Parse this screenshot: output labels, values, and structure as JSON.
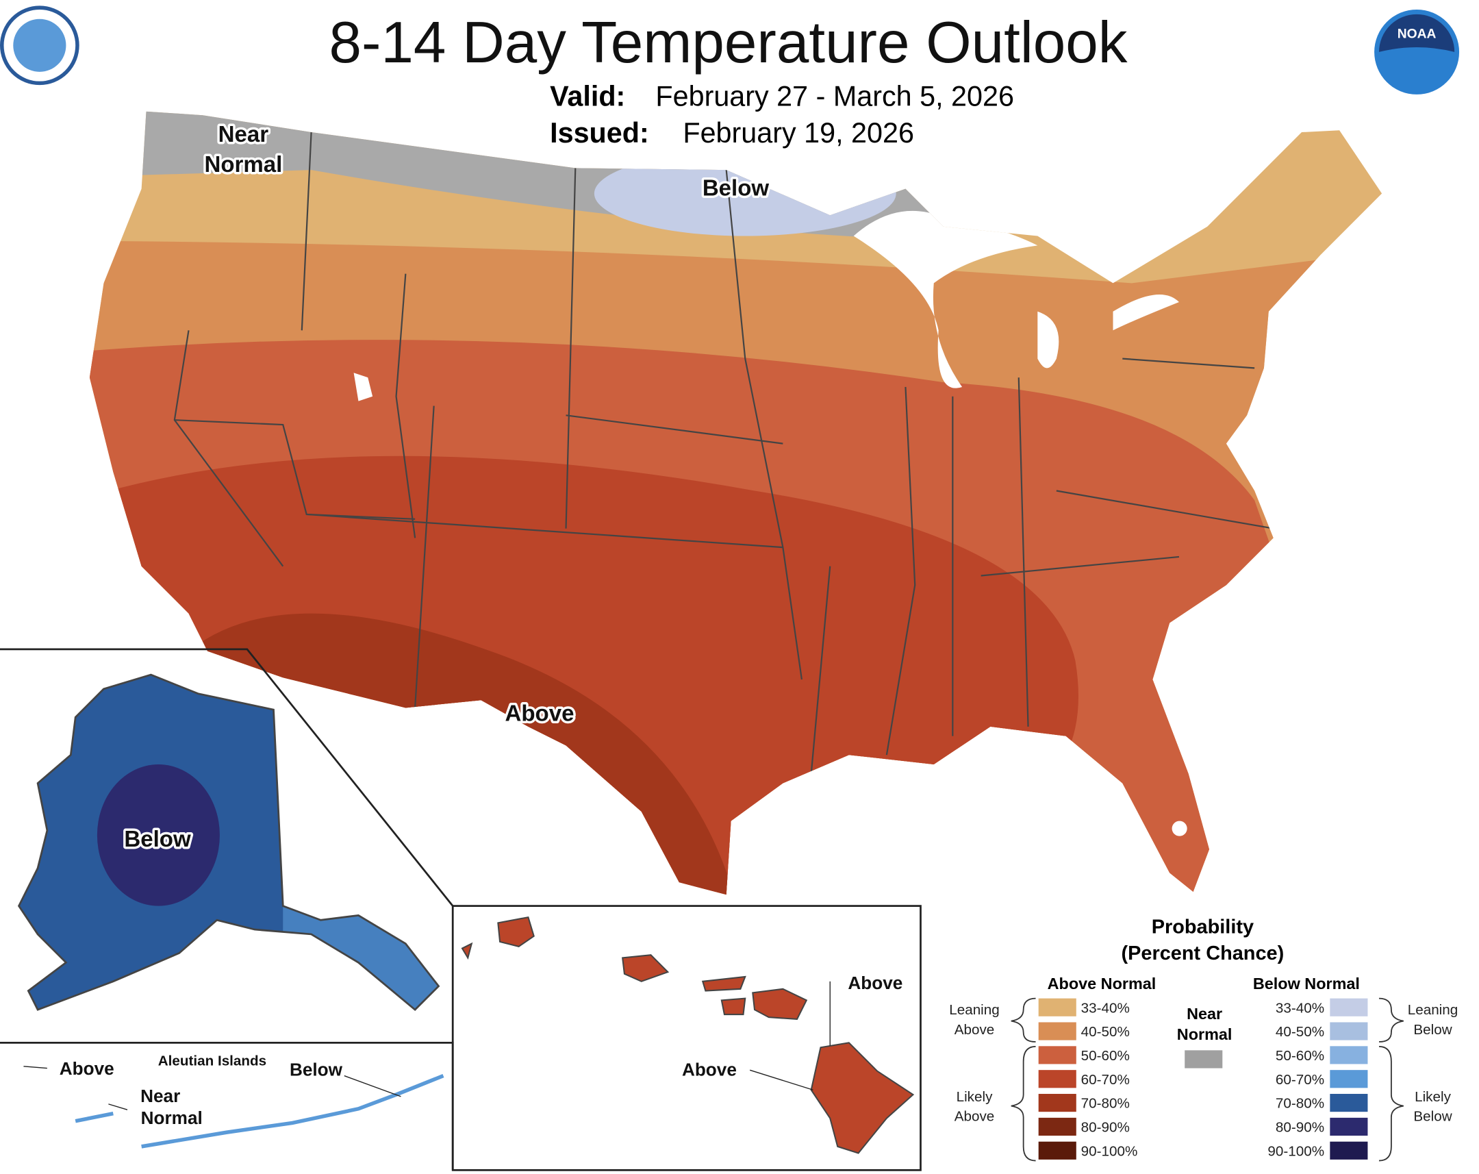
{
  "header": {
    "title": "8-14 Day Temperature Outlook",
    "valid_label": "Valid:",
    "valid": "February 27 - March 5, 2026",
    "issued_label": "Issued:",
    "issued": "February 19, 2026",
    "logo_text": "NOAA"
  },
  "map_labels": {
    "conus_near": {
      "lines": [
        "Near",
        "Normal"
      ]
    },
    "conus_below": "Below",
    "conus_above": "Above",
    "alaska_below": "Below",
    "aleutian_title": "Aleutian Islands",
    "aleutian_above": "Above",
    "aleutian_below": "Below",
    "aleutian_near": {
      "lines": [
        "Near",
        "Normal"
      ]
    },
    "hawaii_above_1": "Above",
    "hawaii_above_2": "Above"
  },
  "legend": {
    "title": "Probability",
    "subtitle": "(Percent Chance)",
    "above": {
      "heading": "Above Normal",
      "items": [
        {
          "label": "33-40%",
          "color": "#e0b272"
        },
        {
          "label": "40-50%",
          "color": "#d98e55"
        },
        {
          "label": "50-60%",
          "color": "#cc603e"
        },
        {
          "label": "60-70%",
          "color": "#bb4529"
        },
        {
          "label": "70-80%",
          "color": "#a2371c"
        },
        {
          "label": "80-90%",
          "color": "#7c2812"
        },
        {
          "label": "90-100%",
          "color": "#5a1a0a"
        }
      ]
    },
    "near": {
      "lines": [
        "Near",
        "Normal"
      ],
      "color": "#a0a0a0"
    },
    "below": {
      "heading": "Below Normal",
      "items": [
        {
          "label": "33-40%",
          "color": "#c4cde6"
        },
        {
          "label": "40-50%",
          "color": "#a8bfe0"
        },
        {
          "label": "50-60%",
          "color": "#87b1e0"
        },
        {
          "label": "60-70%",
          "color": "#5a9ad8"
        },
        {
          "label": "70-80%",
          "color": "#2a5a9a"
        },
        {
          "label": "80-90%",
          "color": "#2c2a6e"
        },
        {
          "label": "90-100%",
          "color": "#1e1a50"
        }
      ]
    },
    "leaning_above": [
      "Leaning",
      "Above"
    ],
    "likely_above": [
      "Likely",
      "Above"
    ],
    "leaning_below": [
      "Leaning",
      "Below"
    ],
    "likely_below": [
      "Likely",
      "Below"
    ]
  }
}
